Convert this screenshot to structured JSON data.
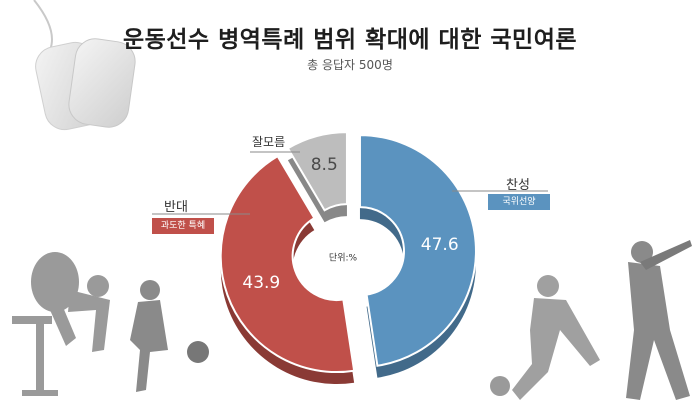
{
  "title": "운동선수 병역특례 범위 확대에 대한 국민여론",
  "subtitle": "총 응답자 500명",
  "chart_data": {
    "type": "pie",
    "style": "donut",
    "unit_label": "단위:%",
    "slices": [
      {
        "label": "찬성",
        "value": 47.6,
        "note": "국위선양",
        "color": "#5b93bf"
      },
      {
        "label": "반대",
        "value": 43.9,
        "note": "과도한 특혜",
        "color": "#c0504a"
      },
      {
        "label": "잘모름",
        "value": 8.5,
        "note": "",
        "color": "#bdbdbd"
      }
    ]
  }
}
